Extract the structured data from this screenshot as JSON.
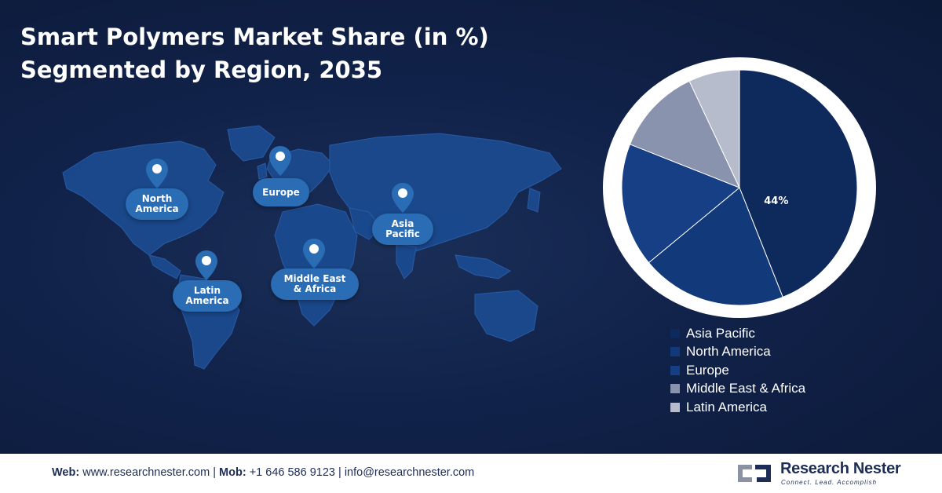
{
  "title": {
    "line1": "Smart Polymers Market Share (in %)",
    "line2": "Segmented by Region, 2035"
  },
  "map": {
    "pins": [
      {
        "label": "North America",
        "line1": "North",
        "line2": "America",
        "icon": "location-pin-icon"
      },
      {
        "label": "Europe",
        "line1": "Europe",
        "line2": "",
        "icon": "location-pin-icon"
      },
      {
        "label": "Asia Pacific",
        "line1": "Asia",
        "line2": "Pacific",
        "icon": "location-pin-icon"
      },
      {
        "label": "Latin America",
        "line1": "Latin",
        "line2": "America",
        "icon": "location-pin-icon"
      },
      {
        "label": "Middle East & Africa",
        "line1": "Middle East",
        "line2": "& Africa",
        "icon": "location-pin-icon"
      }
    ]
  },
  "chart_data": {
    "type": "pie",
    "title": "Smart Polymers Market Share (in %) Segmented by Region, 2035",
    "categories": [
      "Asia Pacific",
      "North America",
      "Europe",
      "Middle East & Africa",
      "Latin America"
    ],
    "values": [
      44,
      20,
      17,
      12,
      7
    ],
    "data_labels": [
      "44%",
      "",
      "",
      "",
      ""
    ],
    "colors": [
      "#0e2a5c",
      "#123a7a",
      "#163f85",
      "#8a93ad",
      "#b6bccb"
    ],
    "legend_position": "bottom-right"
  },
  "footer": {
    "web_label": "Web:",
    "web_value": "www.researchnester.com",
    "sep1": "|",
    "mob_label": "Mob:",
    "mob_value": "+1 646 586 9123",
    "sep2": "|",
    "email": "info@researchnester.com"
  },
  "logo": {
    "name": "Research Nester",
    "tagline": "Connect. Lead. Accomplish"
  }
}
